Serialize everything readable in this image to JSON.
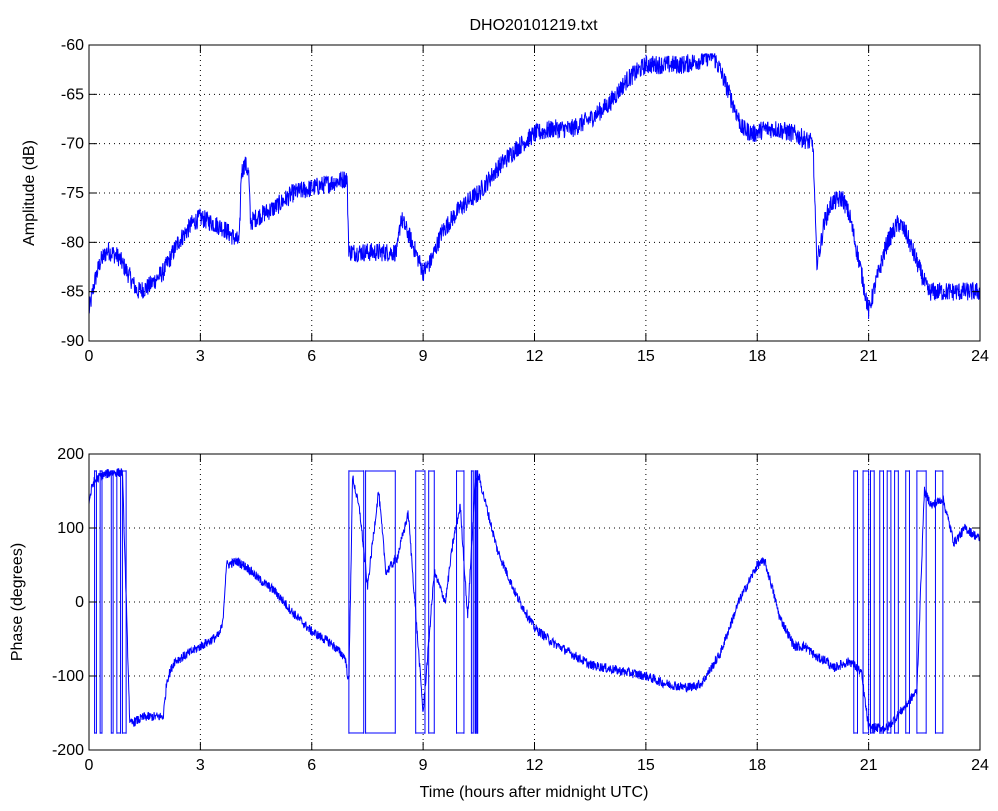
{
  "figure": {
    "title": "DHO20101219.txt",
    "line_color": "#0000ff"
  },
  "chart_data": [
    {
      "type": "line",
      "title": "DHO20101219.txt",
      "xlabel": "",
      "ylabel": "Amplitude (dB)",
      "xlim": [
        0,
        24
      ],
      "ylim": [
        -90,
        -60
      ],
      "xticks": [
        0,
        3,
        6,
        9,
        12,
        15,
        18,
        21,
        24
      ],
      "yticks": [
        -90,
        -85,
        -80,
        -75,
        -70,
        -65,
        -60
      ],
      "grid": true,
      "series": [
        {
          "color": "#0000ff",
          "noise": 0.6,
          "x": [
            0,
            0.15,
            0.3,
            0.5,
            0.8,
            1.1,
            1.3,
            1.6,
            2.0,
            2.4,
            2.8,
            3.0,
            3.3,
            3.6,
            3.9,
            4.05,
            4.1,
            4.2,
            4.3,
            4.35,
            4.5,
            5.0,
            5.5,
            6.0,
            6.5,
            6.95,
            7.0,
            7.1,
            7.5,
            8.0,
            8.3,
            8.4,
            8.7,
            9.0,
            9.2,
            9.5,
            10.0,
            10.5,
            11.0,
            11.5,
            12.0,
            12.5,
            13.0,
            13.5,
            14.0,
            14.5,
            15.0,
            15.5,
            16.0,
            16.5,
            16.8,
            17.0,
            17.3,
            17.6,
            17.9,
            18.2,
            18.5,
            19.0,
            19.5,
            19.6,
            19.7,
            19.8,
            20.0,
            20.3,
            20.5,
            20.8,
            21.0,
            21.2,
            21.5,
            21.8,
            22.0,
            22.3,
            22.6,
            23.0,
            23.5,
            24.0
          ],
          "y": [
            -87,
            -84,
            -82,
            -80.8,
            -81.5,
            -83.5,
            -85,
            -84.5,
            -83,
            -80,
            -78,
            -77.5,
            -78,
            -78.5,
            -79.5,
            -80,
            -73,
            -72,
            -73,
            -78,
            -77.5,
            -76.5,
            -75,
            -74.5,
            -74,
            -73.5,
            -81,
            -81,
            -81,
            -81,
            -81,
            -77.5,
            -80,
            -83,
            -82,
            -79,
            -76.5,
            -75,
            -72.5,
            -70.5,
            -69,
            -68.5,
            -68.5,
            -67.5,
            -66,
            -63.5,
            -62,
            -62,
            -62,
            -61.5,
            -61,
            -62.5,
            -65.5,
            -68.5,
            -69,
            -68.5,
            -68.5,
            -69,
            -70,
            -82,
            -80.5,
            -78,
            -76,
            -75.5,
            -77.5,
            -83,
            -87,
            -84,
            -80,
            -78,
            -79,
            -82,
            -85,
            -85,
            -85,
            -85
          ]
        }
      ]
    },
    {
      "type": "line",
      "title": "",
      "xlabel": "Time (hours after midnight UTC)",
      "ylabel": "Phase (degrees)",
      "xlim": [
        0,
        24
      ],
      "ylim": [
        -200,
        200
      ],
      "xticks": [
        0,
        3,
        6,
        9,
        12,
        15,
        18,
        21,
        24
      ],
      "yticks": [
        -200,
        -100,
        0,
        100,
        200
      ],
      "grid": true,
      "series": [
        {
          "color": "#0000ff",
          "noise": 4,
          "x": [
            0,
            0.1,
            0.3,
            0.6,
            0.9,
            1.1,
            1.5,
            2.0,
            2.1,
            2.3,
            2.5,
            3.0,
            3.5,
            3.6,
            3.7,
            4.0,
            4.3,
            4.6,
            5.0,
            5.5,
            6.0,
            6.5,
            6.9,
            7.0,
            7.1,
            7.3,
            7.5,
            7.8,
            8.0,
            8.3,
            8.6,
            9.0,
            9.3,
            9.6,
            9.8,
            10.0,
            10.2,
            10.4,
            10.5,
            10.8,
            11.0,
            11.5,
            12.0,
            12.5,
            13.0,
            13.5,
            14.0,
            14.5,
            15.0,
            15.5,
            16.0,
            16.2,
            16.5,
            17.0,
            17.5,
            18.0,
            18.2,
            18.4,
            18.6,
            18.8,
            19.0,
            19.3,
            19.6,
            19.9,
            20.0,
            20.5,
            20.8,
            21.0,
            21.2,
            21.5,
            22.0,
            22.3,
            22.5,
            22.7,
            23.0,
            23.3,
            23.6,
            24.0
          ],
          "y": [
            135,
            160,
            170,
            175,
            175,
            -165,
            -155,
            -155,
            -105,
            -80,
            -75,
            -60,
            -45,
            -30,
            50,
            55,
            45,
            30,
            15,
            -15,
            -40,
            -55,
            -75,
            -110,
            170,
            120,
            20,
            150,
            40,
            60,
            120,
            -150,
            40,
            0,
            80,
            130,
            -20,
            160,
            170,
            110,
            70,
            10,
            -35,
            -55,
            -70,
            -85,
            -90,
            -95,
            -100,
            -110,
            -115,
            -115,
            -110,
            -70,
            0,
            50,
            55,
            20,
            -20,
            -40,
            -60,
            -60,
            -75,
            -80,
            -90,
            -80,
            -95,
            -170,
            -170,
            -170,
            -140,
            -120,
            150,
            130,
            140,
            80,
            100,
            85
          ],
          "wraps": [
            [
              0.15,
              0.2,
              0.3,
              0.35,
              0.6,
              0.65,
              0.75,
              0.85,
              0.9,
              1.0
            ],
            [
              7.0,
              7.4,
              7.45,
              8.25,
              8.8,
              9.05,
              9.15,
              9.3,
              9.9,
              10.1,
              10.3,
              10.35,
              10.4,
              10.42,
              10.45,
              10.47
            ],
            [
              20.6,
              20.7,
              20.85,
              21.0,
              21.05,
              21.15,
              21.3,
              21.4,
              21.5,
              21.6,
              21.7,
              21.8,
              22.0,
              22.1,
              22.3,
              22.55,
              22.8,
              23.0
            ]
          ]
        }
      ]
    }
  ]
}
